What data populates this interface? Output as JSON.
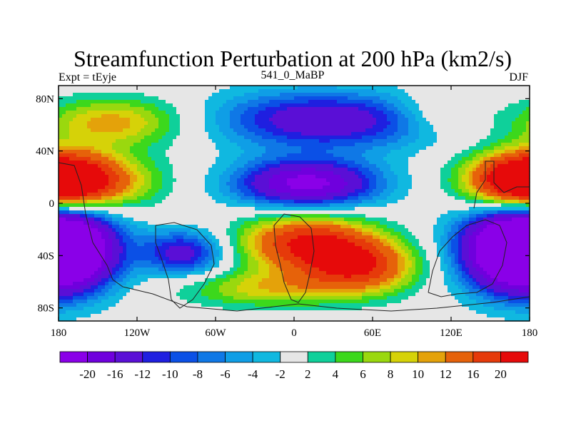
{
  "chart_data": {
    "type": "heatmap",
    "title": "Streamfunction Perturbation at 200 hPa (km2/s)",
    "left_label": "Expt = tEyje",
    "center_label": "541_0_MaBP",
    "right_label": "DJF",
    "x_ticks": [
      "180",
      "120W",
      "60W",
      "0",
      "60E",
      "120E",
      "180"
    ],
    "y_ticks": [
      "80N",
      "40N",
      "0",
      "40S",
      "80S"
    ],
    "x_range": [
      -180,
      180
    ],
    "y_range": [
      -90,
      90
    ],
    "colorbar": {
      "labels": [
        "-20",
        "-16",
        "-12",
        "-10",
        "-8",
        "-6",
        "-4",
        "-2",
        "2",
        "4",
        "6",
        "8",
        "10",
        "12",
        "16",
        "20"
      ],
      "colors": [
        "#8a00e8",
        "#6f00dd",
        "#5a0fd6",
        "#1f1fe0",
        "#0b50e6",
        "#0f78e6",
        "#0f9ee6",
        "#10b8e0",
        "#e6e6e6",
        "#0fd09a",
        "#3cd81c",
        "#9ad80e",
        "#d6d208",
        "#e4a20a",
        "#e6620a",
        "#e63a0a",
        "#e60a0a"
      ]
    },
    "blobs": [
      {
        "lon": 10,
        "lat": 15,
        "amp": -22,
        "slon": 38,
        "slat": 13
      },
      {
        "lon": 45,
        "lat": 63,
        "amp": -12,
        "slon": 55,
        "slat": 15
      },
      {
        "lon": -10,
        "lat": 65,
        "amp": -6,
        "slon": 45,
        "slat": 16
      },
      {
        "lon": -175,
        "lat": -35,
        "amp": -24,
        "slon": 28,
        "slat": 22
      },
      {
        "lon": 168,
        "lat": -35,
        "amp": -24,
        "slon": 30,
        "slat": 22
      },
      {
        "lon": -85,
        "lat": -38,
        "amp": -14,
        "slon": 22,
        "slat": 12
      },
      {
        "lon": -168,
        "lat": 17,
        "amp": 20,
        "slon": 38,
        "slat": 15
      },
      {
        "lon": 176,
        "lat": 17,
        "amp": 20,
        "slon": 26,
        "slat": 15
      },
      {
        "lon": -140,
        "lat": 62,
        "amp": 11,
        "slon": 38,
        "slat": 13
      },
      {
        "lon": 10,
        "lat": -30,
        "amp": 20,
        "slon": 35,
        "slat": 15
      },
      {
        "lon": 50,
        "lat": -48,
        "amp": 18,
        "slon": 30,
        "slat": 14
      },
      {
        "lon": -20,
        "lat": -65,
        "amp": 9,
        "slon": 45,
        "slat": 10
      },
      {
        "lon": 110,
        "lat": 68,
        "amp": 6,
        "slon": 25,
        "slat": 12
      }
    ]
  }
}
